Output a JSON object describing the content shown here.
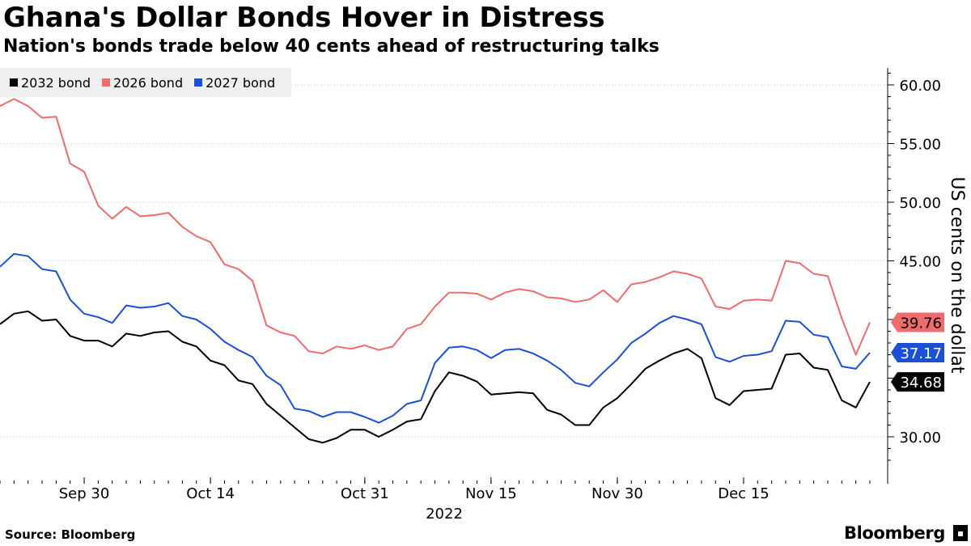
{
  "header": {
    "title": "Ghana's Dollar Bonds Hover in Distress",
    "subtitle": "Nation's bonds trade below 40 cents ahead of restructuring talks"
  },
  "footer": {
    "source": "Source: Bloomberg",
    "brand": "Bloomberg"
  },
  "chart_data": {
    "type": "line",
    "title": "Ghana's Dollar Bonds Hover in Distress",
    "subtitle": "Nation's bonds trade below 40 cents ahead of restructuring talks",
    "xlabel": "2022",
    "ylabel": "US cents on the dollat",
    "ylim": [
      27,
      62
    ],
    "y_ticks": [
      "30.00",
      "45.00",
      "50.00",
      "55.00",
      "60.00"
    ],
    "x_tick_labels": [
      "Sep 30",
      "Oct 14",
      "Oct 31",
      "Nov 15",
      "Nov 30",
      "Dec 15"
    ],
    "x_year_label": "2022",
    "grid": true,
    "legend_position": "top-left",
    "series": [
      {
        "name": "2032 bond",
        "color": "#000000",
        "last_label": "34.68",
        "values": [
          39.6,
          40.5,
          40.7,
          39.9,
          40.0,
          38.6,
          38.2,
          38.2,
          37.7,
          38.8,
          38.6,
          38.9,
          39.0,
          38.1,
          37.7,
          36.5,
          36.1,
          34.8,
          34.5,
          32.8,
          31.8,
          30.8,
          29.8,
          29.5,
          29.9,
          30.6,
          30.6,
          30.0,
          30.6,
          31.3,
          31.5,
          33.9,
          35.5,
          35.2,
          34.7,
          33.6,
          33.7,
          33.8,
          33.7,
          32.3,
          31.9,
          31.0,
          31.0,
          32.5,
          33.3,
          34.5,
          35.8,
          36.5,
          37.1,
          37.5,
          36.7,
          33.3,
          32.7,
          33.9,
          34.0,
          34.1,
          37.0,
          37.1,
          35.9,
          35.7,
          33.1,
          32.5,
          34.68
        ]
      },
      {
        "name": "2026 bond",
        "color": "#f06b6b",
        "last_label": "39.76",
        "values": [
          58.2,
          58.8,
          58.2,
          57.2,
          57.3,
          53.3,
          52.6,
          49.7,
          48.6,
          49.6,
          48.8,
          48.9,
          49.1,
          47.9,
          47.1,
          46.6,
          44.7,
          44.3,
          43.3,
          39.5,
          38.9,
          38.6,
          37.3,
          37.1,
          37.7,
          37.5,
          37.8,
          37.4,
          37.7,
          39.2,
          39.6,
          41.1,
          42.3,
          42.3,
          42.2,
          41.7,
          42.3,
          42.6,
          42.4,
          41.9,
          41.8,
          41.5,
          41.7,
          42.5,
          41.5,
          43.0,
          43.2,
          43.6,
          44.1,
          43.9,
          43.5,
          41.1,
          40.9,
          41.6,
          41.7,
          41.6,
          45.0,
          44.8,
          43.9,
          43.7,
          40.1,
          37.0,
          39.76
        ]
      },
      {
        "name": "2027 bond",
        "color": "#1a4fd6",
        "last_label": "37.17",
        "values": [
          44.5,
          45.6,
          45.4,
          44.3,
          44.1,
          41.7,
          40.5,
          40.2,
          39.7,
          41.2,
          41.0,
          41.1,
          41.4,
          40.3,
          40.0,
          39.2,
          38.1,
          37.4,
          36.8,
          35.2,
          34.4,
          32.4,
          32.2,
          31.7,
          32.1,
          32.1,
          31.7,
          31.2,
          31.8,
          32.8,
          33.1,
          36.3,
          37.6,
          37.7,
          37.4,
          36.7,
          37.4,
          37.5,
          37.1,
          36.5,
          35.7,
          34.6,
          34.3,
          35.5,
          36.6,
          38.0,
          38.8,
          39.7,
          40.3,
          40.0,
          39.6,
          36.8,
          36.4,
          36.9,
          37.0,
          37.3,
          39.9,
          39.8,
          38.7,
          38.5,
          36.0,
          35.8,
          37.17
        ]
      }
    ]
  }
}
